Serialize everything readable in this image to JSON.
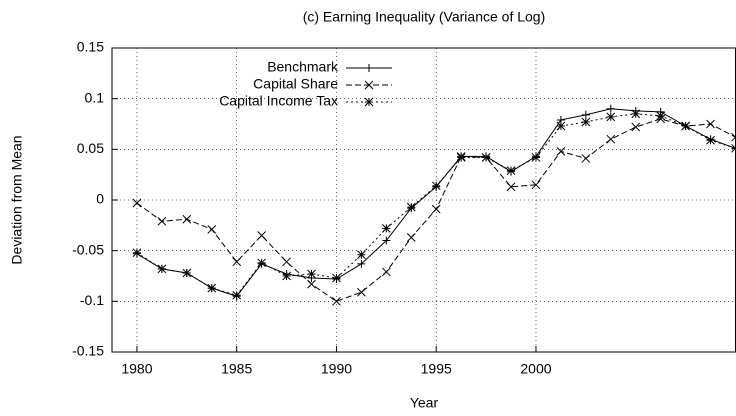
{
  "chart_data": {
    "type": "line",
    "title": "(c) Earning Inequality (Variance of Log)",
    "xlabel": "Year",
    "ylabel": "Deviation from Mean",
    "x": [
      1980,
      1981.25,
      1982.5,
      1983.75,
      1985,
      1986.25,
      1987.5,
      1988.75,
      1990,
      1991.25,
      1992.5,
      1993.75,
      1995,
      1996.25,
      1997.5,
      1998.75,
      2000,
      2001.25,
      2002.5,
      2003.75,
      2005,
      2006.25,
      2007.5,
      2008.75,
      2010
    ],
    "series": [
      {
        "name": "Benchmark",
        "color": "#000000",
        "marker": "plus",
        "dash": "none",
        "values": [
          -0.053,
          -0.068,
          -0.072,
          -0.087,
          -0.095,
          -0.063,
          -0.073,
          -0.077,
          -0.078,
          -0.063,
          -0.04,
          -0.008,
          0.013,
          0.043,
          0.043,
          0.028,
          0.043,
          0.079,
          0.084,
          0.09,
          0.088,
          0.087,
          0.073,
          0.06,
          0.051
        ]
      },
      {
        "name": "Capital Share",
        "color": "#000000",
        "marker": "cross",
        "dash": "6,3",
        "values": [
          -0.003,
          -0.021,
          -0.019,
          -0.029,
          -0.061,
          -0.035,
          -0.061,
          -0.083,
          -0.1,
          -0.091,
          -0.071,
          -0.037,
          -0.009,
          0.043,
          0.042,
          0.013,
          0.015,
          0.048,
          0.041,
          0.06,
          0.072,
          0.08,
          0.073,
          0.075,
          0.062
        ]
      },
      {
        "name": "Capital Income Tax",
        "color": "#000000",
        "marker": "star",
        "dash": "2,3",
        "values": [
          -0.052,
          -0.068,
          -0.072,
          -0.087,
          -0.094,
          -0.062,
          -0.075,
          -0.073,
          -0.077,
          -0.054,
          -0.028,
          -0.007,
          0.014,
          0.042,
          0.042,
          0.029,
          0.042,
          0.073,
          0.077,
          0.082,
          0.085,
          0.083,
          0.073,
          0.059,
          0.051
        ]
      }
    ],
    "xlim": [
      1978.75,
      2010
    ],
    "xticks": [
      1980,
      1985,
      1990,
      1995,
      2000
    ],
    "ylim": [
      -0.15,
      0.15
    ],
    "yticks": [
      -0.15,
      -0.1,
      -0.05,
      0,
      0.05,
      0.1,
      0.15
    ],
    "grid": true,
    "legend": "top-left"
  }
}
